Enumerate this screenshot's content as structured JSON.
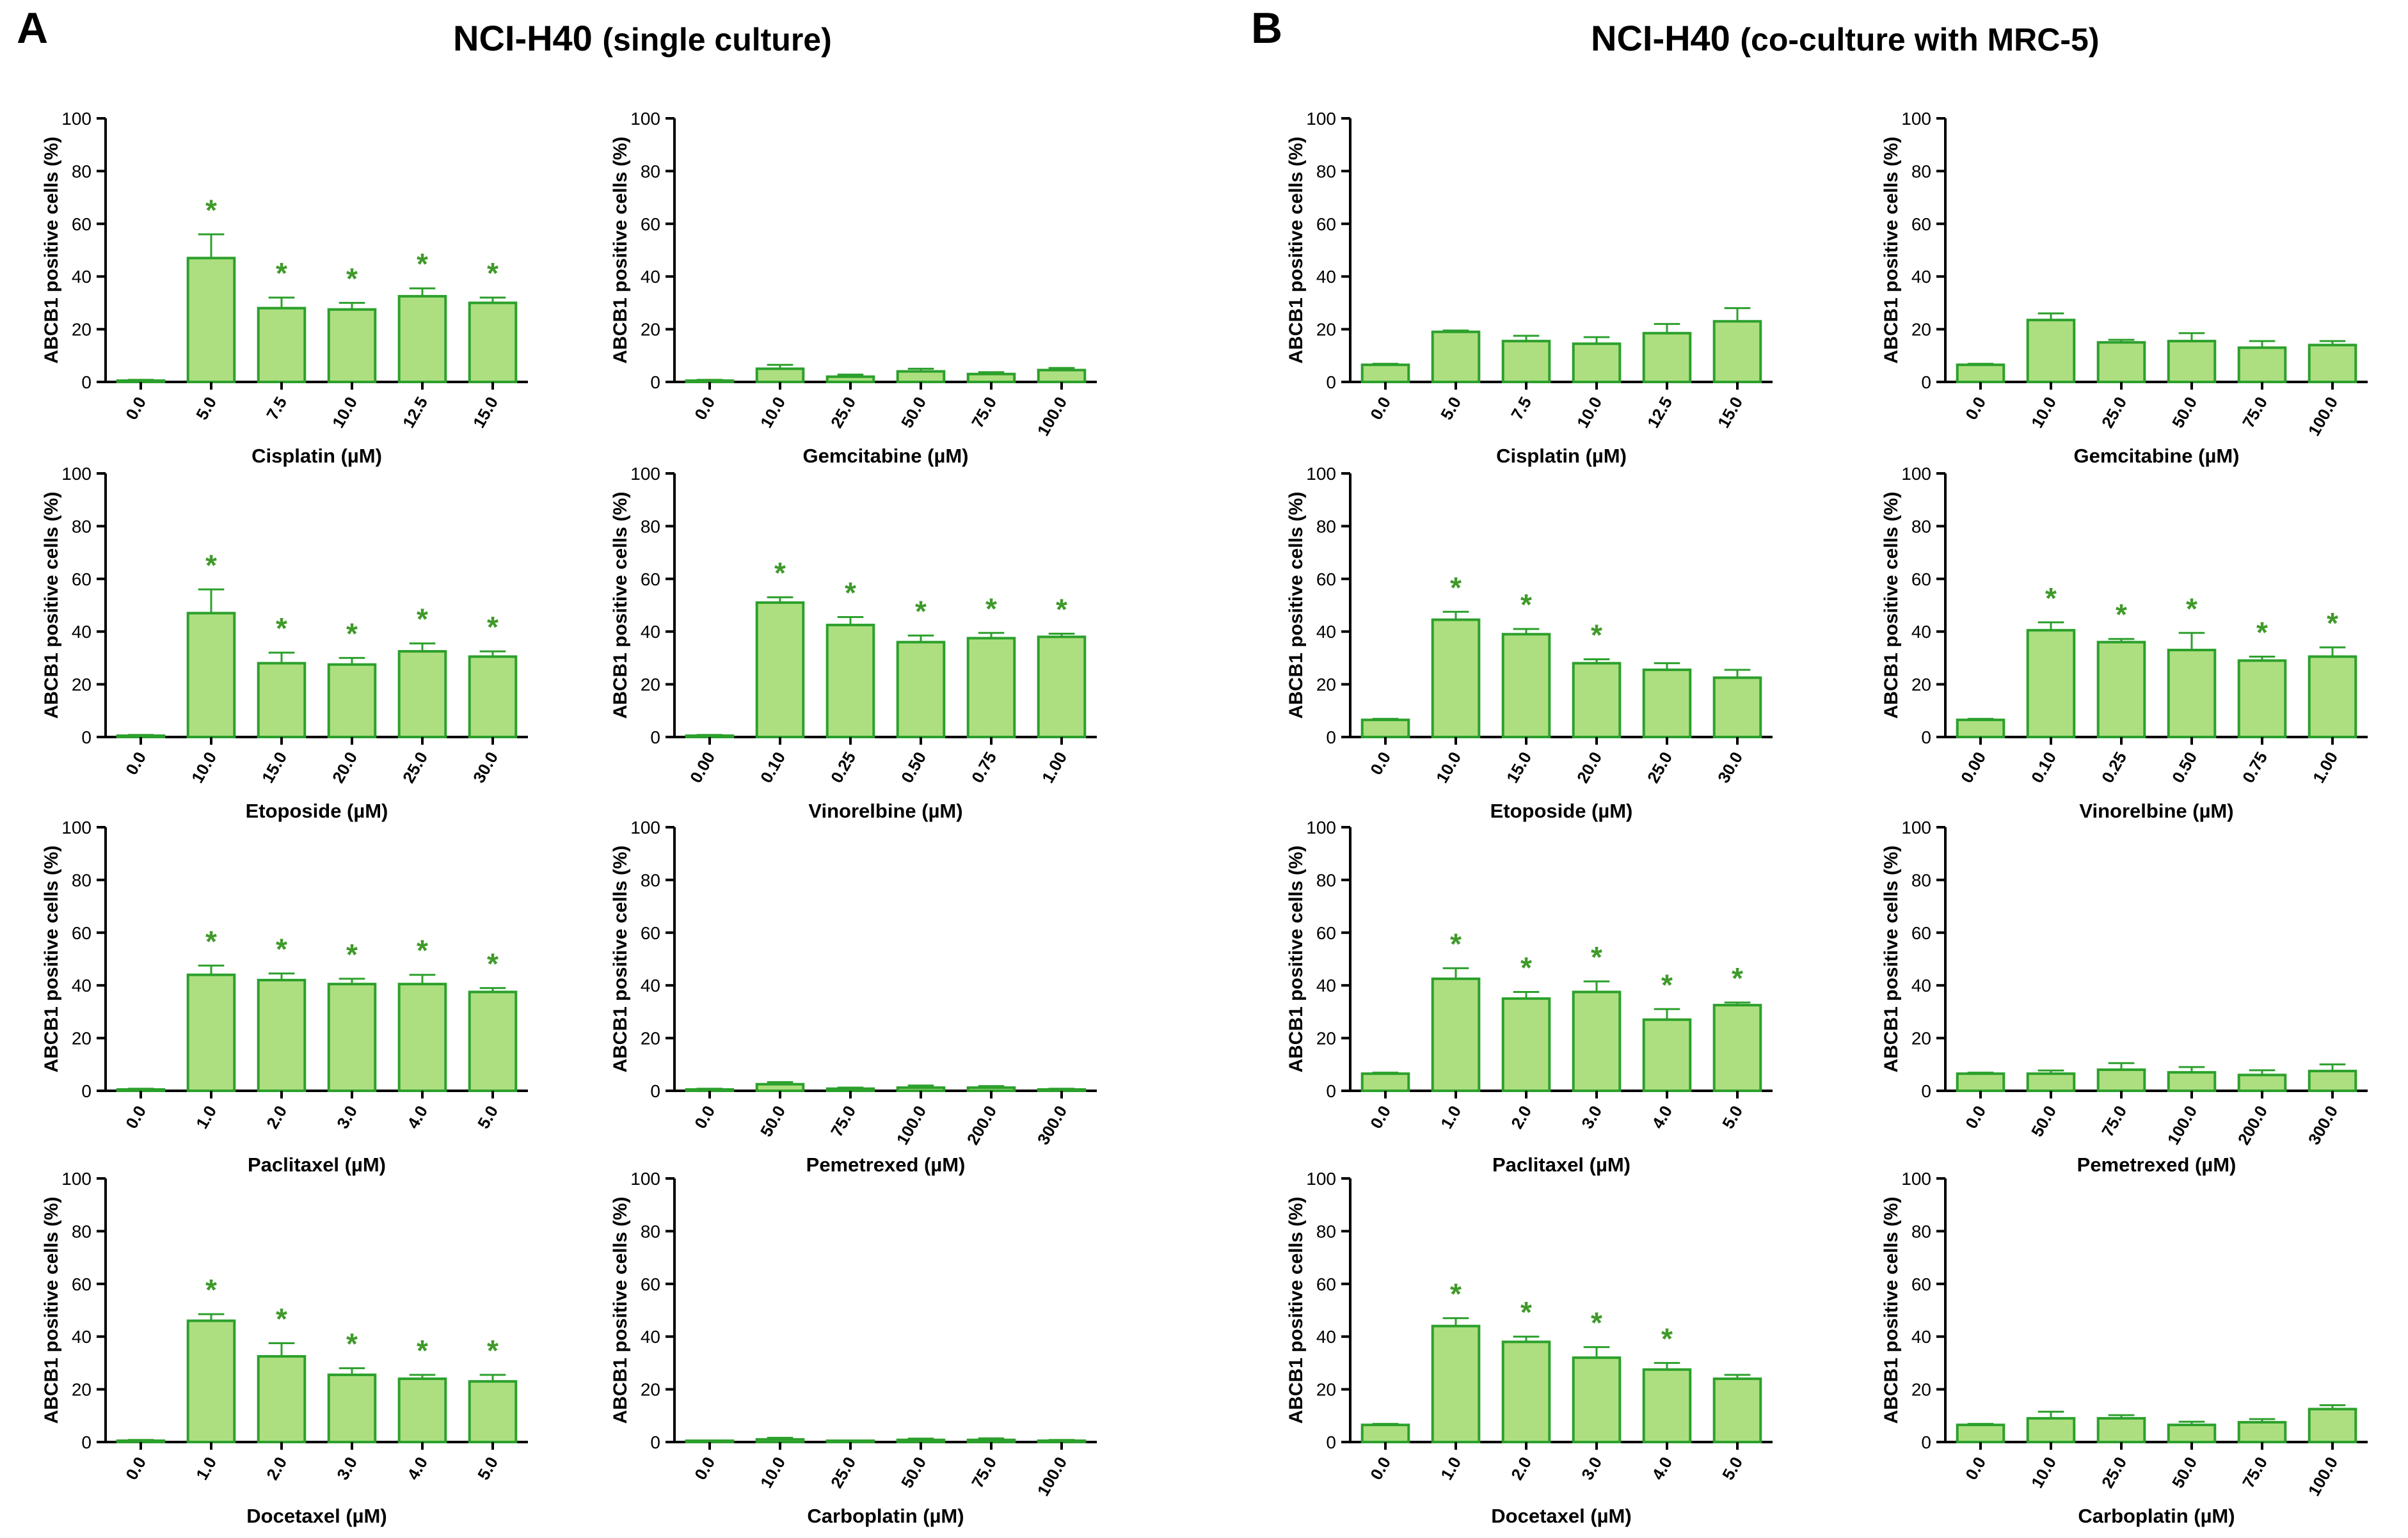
{
  "panels": [
    {
      "letter": "A",
      "title_main": "NCI-H40",
      "title_sub": "(single culture)"
    },
    {
      "letter": "B",
      "title_main": "NCI-H40",
      "title_sub": "(co-culture with MRC-5)"
    }
  ],
  "colors": {
    "bar_fill": "#addf80",
    "bar_stroke": "#2ca02c",
    "asterisk": "#3f9a2a",
    "axis": "#000000"
  },
  "chart_data": [
    {
      "type": "bar",
      "panel": "A",
      "title": "",
      "xlabel": "Cisplatin (µM)",
      "ylabel": "ABCB1 positive cells (%)",
      "ylim": [
        0,
        100
      ],
      "yticks": [
        0,
        20,
        40,
        60,
        80,
        100
      ],
      "categories": [
        "0.0",
        "5.0",
        "7.5",
        "10.0",
        "12.5",
        "15.0"
      ],
      "values": [
        0.5,
        47,
        28,
        27.5,
        32.5,
        30
      ],
      "errors": [
        0.3,
        9,
        4,
        2.5,
        3,
        2
      ],
      "significant": [
        false,
        true,
        true,
        true,
        true,
        true
      ]
    },
    {
      "type": "bar",
      "panel": "A",
      "title": "",
      "xlabel": "Gemcitabine (µM)",
      "ylabel": "ABCB1 positive cells (%)",
      "ylim": [
        0,
        100
      ],
      "yticks": [
        0,
        20,
        40,
        60,
        80,
        100
      ],
      "categories": [
        "0.0",
        "10.0",
        "25.0",
        "50.0",
        "75.0",
        "100.0"
      ],
      "values": [
        0.5,
        5,
        2,
        4,
        3,
        4.5
      ],
      "errors": [
        0.3,
        1.5,
        0.8,
        1,
        0.7,
        0.8
      ],
      "significant": [
        false,
        false,
        false,
        false,
        false,
        false
      ]
    },
    {
      "type": "bar",
      "panel": "A",
      "title": "",
      "xlabel": "Etoposide (µM)",
      "ylabel": "ABCB1 positive cells (%)",
      "ylim": [
        0,
        100
      ],
      "yticks": [
        0,
        20,
        40,
        60,
        80,
        100
      ],
      "categories": [
        "0.0",
        "10.0",
        "15.0",
        "20.0",
        "25.0",
        "30.0"
      ],
      "values": [
        0.5,
        47,
        28,
        27.5,
        32.5,
        30.5
      ],
      "errors": [
        0.3,
        9,
        4,
        2.5,
        3,
        2
      ],
      "significant": [
        false,
        true,
        true,
        true,
        true,
        true
      ]
    },
    {
      "type": "bar",
      "panel": "A",
      "title": "",
      "xlabel": "Vinorelbine (µM)",
      "ylabel": "ABCB1 positive cells (%)",
      "ylim": [
        0,
        100
      ],
      "yticks": [
        0,
        20,
        40,
        60,
        80,
        100
      ],
      "categories": [
        "0.00",
        "0.10",
        "0.25",
        "0.50",
        "0.75",
        "1.00"
      ],
      "values": [
        0.5,
        51,
        42.5,
        36,
        37.5,
        38
      ],
      "errors": [
        0.3,
        2,
        3,
        2.5,
        2,
        1.2
      ],
      "significant": [
        false,
        true,
        true,
        true,
        true,
        true
      ]
    },
    {
      "type": "bar",
      "panel": "A",
      "title": "",
      "xlabel": "Paclitaxel (µM)",
      "ylabel": "ABCB1 positive cells (%)",
      "ylim": [
        0,
        100
      ],
      "yticks": [
        0,
        20,
        40,
        60,
        80,
        100
      ],
      "categories": [
        "0.0",
        "1.0",
        "2.0",
        "3.0",
        "4.0",
        "5.0"
      ],
      "values": [
        0.5,
        44,
        42,
        40.5,
        40.5,
        37.5
      ],
      "errors": [
        0.3,
        3.5,
        2.5,
        2,
        3.5,
        1.5
      ],
      "significant": [
        false,
        true,
        true,
        true,
        true,
        true
      ]
    },
    {
      "type": "bar",
      "panel": "A",
      "title": "",
      "xlabel": "Pemetrexed (µM)",
      "ylabel": "ABCB1 positive cells (%)",
      "ylim": [
        0,
        100
      ],
      "yticks": [
        0,
        20,
        40,
        60,
        80,
        100
      ],
      "categories": [
        "0.0",
        "50.0",
        "75.0",
        "100.0",
        "200.0",
        "300.0"
      ],
      "values": [
        0.5,
        2.5,
        0.8,
        1.2,
        1.2,
        0.5
      ],
      "errors": [
        0.3,
        0.8,
        0.4,
        0.8,
        0.6,
        0.3
      ],
      "significant": [
        false,
        false,
        false,
        false,
        false,
        false
      ]
    },
    {
      "type": "bar",
      "panel": "A",
      "title": "",
      "xlabel": "Docetaxel (µM)",
      "ylabel": "ABCB1 positive cells (%)",
      "ylim": [
        0,
        100
      ],
      "yticks": [
        0,
        20,
        40,
        60,
        80,
        100
      ],
      "categories": [
        "0.0",
        "1.0",
        "2.0",
        "3.0",
        "4.0",
        "5.0"
      ],
      "values": [
        0.5,
        46,
        32.5,
        25.5,
        24,
        23
      ],
      "errors": [
        0.3,
        2.5,
        5,
        2.5,
        1.5,
        2.5
      ],
      "significant": [
        false,
        true,
        true,
        true,
        true,
        true
      ]
    },
    {
      "type": "bar",
      "panel": "A",
      "title": "",
      "xlabel": "Carboplatin (µM)",
      "ylabel": "ABCB1 positive cells (%)",
      "ylim": [
        0,
        100
      ],
      "yticks": [
        0,
        20,
        40,
        60,
        80,
        100
      ],
      "categories": [
        "0.0",
        "10.0",
        "25.0",
        "50.0",
        "75.0",
        "100.0"
      ],
      "values": [
        0.3,
        1,
        0.2,
        0.8,
        0.8,
        0.5
      ],
      "errors": [
        0.2,
        0.6,
        0.2,
        0.5,
        0.6,
        0.3
      ],
      "significant": [
        false,
        false,
        false,
        false,
        false,
        false
      ]
    },
    {
      "type": "bar",
      "panel": "B",
      "title": "",
      "xlabel": "Cisplatin (µM)",
      "ylabel": "ABCB1 positive cells (%)",
      "ylim": [
        0,
        100
      ],
      "yticks": [
        0,
        20,
        40,
        60,
        80,
        100
      ],
      "categories": [
        "0.0",
        "5.0",
        "7.5",
        "10.0",
        "12.5",
        "15.0"
      ],
      "values": [
        6.5,
        19,
        15.5,
        14.5,
        18.5,
        23
      ],
      "errors": [
        0.4,
        0.5,
        2,
        2.5,
        3.5,
        5
      ],
      "significant": [
        false,
        false,
        false,
        false,
        false,
        false
      ]
    },
    {
      "type": "bar",
      "panel": "B",
      "title": "",
      "xlabel": "Gemcitabine (µM)",
      "ylabel": "ABCB1 positive cells (%)",
      "ylim": [
        0,
        100
      ],
      "yticks": [
        0,
        20,
        40,
        60,
        80,
        100
      ],
      "categories": [
        "0.0",
        "10.0",
        "25.0",
        "50.0",
        "75.0",
        "100.0"
      ],
      "values": [
        6.5,
        23.5,
        15,
        15.5,
        13,
        14
      ],
      "errors": [
        0.4,
        2.5,
        1,
        3,
        2.5,
        1.5
      ],
      "significant": [
        false,
        false,
        false,
        false,
        false,
        false
      ]
    },
    {
      "type": "bar",
      "panel": "B",
      "title": "",
      "xlabel": "Etoposide (µM)",
      "ylabel": "ABCB1 positive cells (%)",
      "ylim": [
        0,
        100
      ],
      "yticks": [
        0,
        20,
        40,
        60,
        80,
        100
      ],
      "categories": [
        "0.0",
        "10.0",
        "15.0",
        "20.0",
        "25.0",
        "30.0"
      ],
      "values": [
        6.5,
        44.5,
        39,
        28,
        25.5,
        22.5
      ],
      "errors": [
        0.4,
        3,
        2,
        1.5,
        2.5,
        3
      ],
      "significant": [
        false,
        true,
        true,
        true,
        false,
        false
      ]
    },
    {
      "type": "bar",
      "panel": "B",
      "title": "",
      "xlabel": "Vinorelbine (µM)",
      "ylabel": "ABCB1 positive cells (%)",
      "ylim": [
        0,
        100
      ],
      "yticks": [
        0,
        20,
        40,
        60,
        80,
        100
      ],
      "categories": [
        "0.00",
        "0.10",
        "0.25",
        "0.50",
        "0.75",
        "1.00"
      ],
      "values": [
        6.5,
        40.5,
        36,
        33,
        29,
        30.5
      ],
      "errors": [
        0.4,
        3,
        1.2,
        6.5,
        1.5,
        3.5
      ],
      "significant": [
        false,
        true,
        true,
        true,
        true,
        true
      ]
    },
    {
      "type": "bar",
      "panel": "B",
      "title": "",
      "xlabel": "Paclitaxel (µM)",
      "ylabel": "ABCB1 positive cells (%)",
      "ylim": [
        0,
        100
      ],
      "yticks": [
        0,
        20,
        40,
        60,
        80,
        100
      ],
      "categories": [
        "0.0",
        "1.0",
        "2.0",
        "3.0",
        "4.0",
        "5.0"
      ],
      "values": [
        6.5,
        42.5,
        35,
        37.5,
        27,
        32.5
      ],
      "errors": [
        0.4,
        4,
        2.5,
        4,
        4,
        1
      ],
      "significant": [
        false,
        true,
        true,
        true,
        true,
        true
      ]
    },
    {
      "type": "bar",
      "panel": "B",
      "title": "",
      "xlabel": "Pemetrexed (µM)",
      "ylabel": "ABCB1 positive cells (%)",
      "ylim": [
        0,
        100
      ],
      "yticks": [
        0,
        20,
        40,
        60,
        80,
        100
      ],
      "categories": [
        "0.0",
        "50.0",
        "75.0",
        "100.0",
        "200.0",
        "300.0"
      ],
      "values": [
        6.5,
        6.5,
        8,
        7,
        6,
        7.5
      ],
      "errors": [
        0.4,
        1.2,
        2.5,
        2,
        1.8,
        2.5
      ],
      "significant": [
        false,
        false,
        false,
        false,
        false,
        false
      ]
    },
    {
      "type": "bar",
      "panel": "B",
      "title": "",
      "xlabel": "Docetaxel (µM)",
      "ylabel": "ABCB1 positive cells (%)",
      "ylim": [
        0,
        100
      ],
      "yticks": [
        0,
        20,
        40,
        60,
        80,
        100
      ],
      "categories": [
        "0.0",
        "1.0",
        "2.0",
        "3.0",
        "4.0",
        "5.0"
      ],
      "values": [
        6.5,
        44,
        38,
        32,
        27.5,
        24
      ],
      "errors": [
        0.4,
        3,
        2,
        4,
        2.5,
        1.5
      ],
      "significant": [
        false,
        true,
        true,
        true,
        true,
        false
      ]
    },
    {
      "type": "bar",
      "panel": "B",
      "title": "",
      "xlabel": "Carboplatin (µM)",
      "ylabel": "ABCB1 positive cells (%)",
      "ylim": [
        0,
        100
      ],
      "yticks": [
        0,
        20,
        40,
        60,
        80,
        100
      ],
      "categories": [
        "0.0",
        "10.0",
        "25.0",
        "50.0",
        "75.0",
        "100.0"
      ],
      "values": [
        6.5,
        9,
        9,
        6.5,
        7.5,
        12.5
      ],
      "errors": [
        0.4,
        2.5,
        1.2,
        1.2,
        1.2,
        1.5
      ],
      "significant": [
        false,
        false,
        false,
        false,
        false,
        false
      ]
    }
  ]
}
